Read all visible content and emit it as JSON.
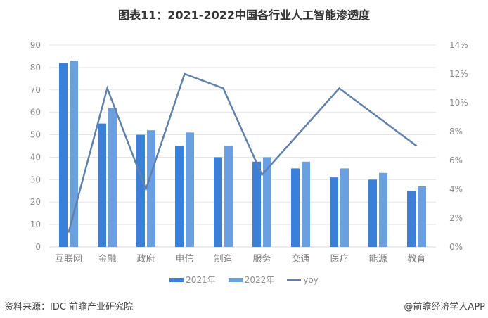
{
  "title": "图表11：2021-2022中国各行业人工智能渗透度",
  "legend": {
    "items": [
      {
        "label": "2021年",
        "color": "#3a7fd8",
        "kind": "bar"
      },
      {
        "label": "2022年",
        "color": "#6a9fe0",
        "kind": "bar"
      },
      {
        "label": "yoy",
        "color": "#6081ab",
        "kind": "line"
      }
    ]
  },
  "footer": {
    "source": "资料来源：IDC  前瞻产业研究院",
    "credit": "@前瞻经济学人APP"
  },
  "colors": {
    "bar_2021": "#3a7fd8",
    "bar_2022": "#6a9fe0",
    "yoy_line": "#6081ab",
    "grid": "#e6e6e6"
  },
  "chart_data": {
    "type": "bar",
    "title": "图表11：2021-2022中国各行业人工智能渗透度",
    "xlabel": "",
    "ylabel": "",
    "categories": [
      "互联网",
      "金融",
      "政府",
      "电信",
      "制造",
      "服务",
      "交通",
      "医疗",
      "能源",
      "教育"
    ],
    "series": [
      {
        "name": "2021年",
        "type": "bar",
        "axis": "left",
        "values": [
          82,
          55,
          50,
          45,
          40,
          38,
          35,
          31,
          30,
          25
        ]
      },
      {
        "name": "2022年",
        "type": "bar",
        "axis": "left",
        "values": [
          83,
          62,
          52,
          51,
          45,
          40,
          38,
          35,
          33,
          27
        ]
      },
      {
        "name": "yoy",
        "type": "line",
        "axis": "right",
        "values": [
          1,
          11,
          4,
          12,
          11,
          5,
          8,
          11,
          9,
          7
        ],
        "unit": "%"
      }
    ],
    "ylim": [
      0,
      90
    ],
    "y_ticks": [
      "0",
      "10",
      "20",
      "30",
      "40",
      "50",
      "60",
      "70",
      "80",
      "90"
    ],
    "y2lim": [
      0,
      14
    ],
    "y2_ticks": [
      "0%",
      "2%",
      "4%",
      "6%",
      "8%",
      "10%",
      "12%",
      "14%"
    ],
    "grid": true,
    "legend_position": "bottom"
  }
}
